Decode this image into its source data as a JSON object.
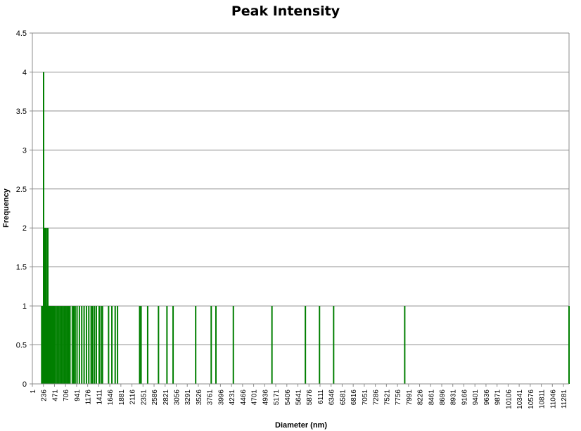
{
  "chart_data": {
    "type": "bar",
    "title": "Peak Intensity",
    "xlabel": "Diameter (nm)",
    "ylabel": "Frequency",
    "ylim": [
      0,
      4.5
    ],
    "yticks": [
      "0",
      "0.5",
      "1",
      "1.5",
      "2",
      "2.5",
      "3",
      "3.5",
      "4",
      "4.5"
    ],
    "grid": true,
    "bin_width": 1,
    "x_start": 1,
    "x_end": 11400,
    "xtick_step": 235,
    "xticks": [
      "1",
      "236",
      "471",
      "706",
      "941",
      "1176",
      "1411",
      "1646",
      "1881",
      "2116",
      "2351",
      "2586",
      "2821",
      "3056",
      "3291",
      "3526",
      "3761",
      "3996",
      "4231",
      "4466",
      "4701",
      "4936",
      "5171",
      "5406",
      "5641",
      "5876",
      "6111",
      "6346",
      "6581",
      "6816",
      "7051",
      "7286",
      "7521",
      "7756",
      "7991",
      "8226",
      "8461",
      "8696",
      "8931",
      "9166",
      "9401",
      "9636",
      "9871",
      "10106",
      "10341",
      "10576",
      "10811",
      "11046",
      "11281"
    ],
    "bar_color": "#007f00",
    "x": [
      200,
      210,
      220,
      230,
      240,
      250,
      260,
      270,
      280,
      290,
      300,
      310,
      320,
      330,
      340,
      350,
      360,
      370,
      390,
      410,
      430,
      450,
      470,
      500,
      530,
      560,
      590,
      620,
      650,
      680,
      710,
      740,
      770,
      800,
      850,
      880,
      910,
      950,
      1000,
      1050,
      1100,
      1150,
      1200,
      1250,
      1280,
      1320,
      1360,
      1420,
      1460,
      1490,
      1620,
      1690,
      1760,
      1810,
      2280,
      2310,
      2450,
      2680,
      2860,
      2990,
      3470,
      3800,
      3900,
      4270,
      5090,
      5800,
      6100,
      6400,
      7910,
      11400
    ],
    "values": [
      1,
      1,
      1,
      1,
      4,
      2,
      2,
      2,
      1,
      2,
      1,
      1,
      2,
      2,
      1,
      1,
      1,
      1,
      1,
      1,
      1,
      1,
      1,
      1,
      1,
      1,
      1,
      1,
      1,
      1,
      1,
      1,
      1,
      1,
      1,
      1,
      1,
      1,
      1,
      1,
      1,
      1,
      1,
      1,
      1,
      1,
      1,
      1,
      1,
      1,
      1,
      1,
      1,
      1,
      1,
      1,
      1,
      1,
      1,
      1,
      1,
      1,
      1,
      1,
      1,
      1,
      1,
      1,
      1,
      1
    ]
  }
}
